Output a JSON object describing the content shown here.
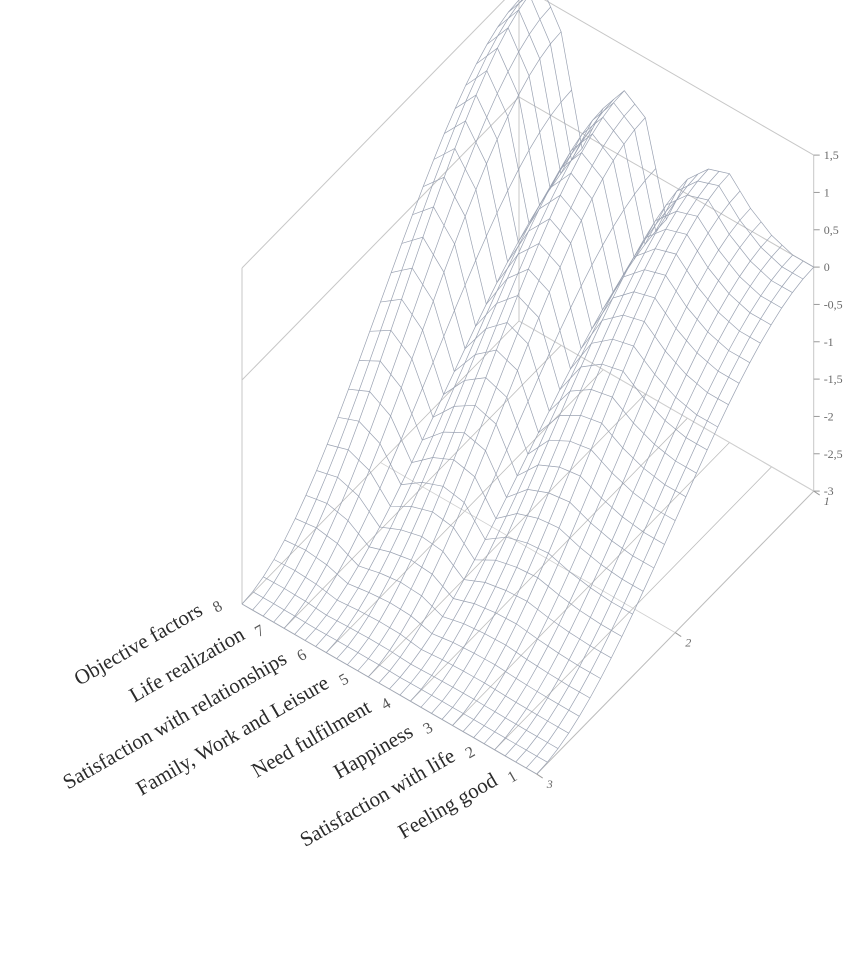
{
  "chart_data": {
    "type": "surface",
    "title": "",
    "xlabel": "",
    "ylabel": "",
    "zlabel": "",
    "category_axis": {
      "ticks": [
        {
          "number": "8",
          "label": "Objective factors"
        },
        {
          "number": "7",
          "label": "Life realization"
        },
        {
          "number": "6",
          "label": "Satisfaction with relationships"
        },
        {
          "number": "5",
          "label": "Family, Work and Leisure"
        },
        {
          "number": "4",
          "label": "Need fulfilment"
        },
        {
          "number": "3",
          "label": "Happiness"
        },
        {
          "number": "2",
          "label": "Satisfaction with life"
        },
        {
          "number": "1",
          "label": "Feeling good"
        }
      ]
    },
    "depth_axis": {
      "ticks": [
        "1",
        "2",
        "3"
      ],
      "range": [
        1,
        3
      ]
    },
    "value_axis": {
      "ticks": [
        "1,5",
        "1",
        "0,5",
        "0",
        "-0,5",
        "-1",
        "-1,5",
        "-2",
        "-2,5",
        "-3"
      ],
      "range": [
        -3,
        1.5
      ]
    },
    "surface_profile": {
      "category_positions": [
        1,
        1.5,
        2,
        2.5,
        3,
        3.5,
        4,
        4.5,
        5,
        5.5,
        6,
        6.5,
        7,
        7.5,
        8
      ],
      "values_at_depth_3": [
        -3,
        -3,
        -3,
        -3,
        -3,
        -3,
        -3,
        -3,
        -3,
        -3,
        -3,
        -3,
        -3,
        -3,
        -3
      ],
      "values_at_depth_1": [
        0,
        0,
        0.1,
        0.3,
        0.6,
        0.5,
        0.2,
        -0.5,
        0.7,
        0.9,
        0.5,
        -0.2,
        1.2,
        1.7,
        1.3
      ]
    },
    "grid": true,
    "mesh_color": "#9aa2b2"
  }
}
